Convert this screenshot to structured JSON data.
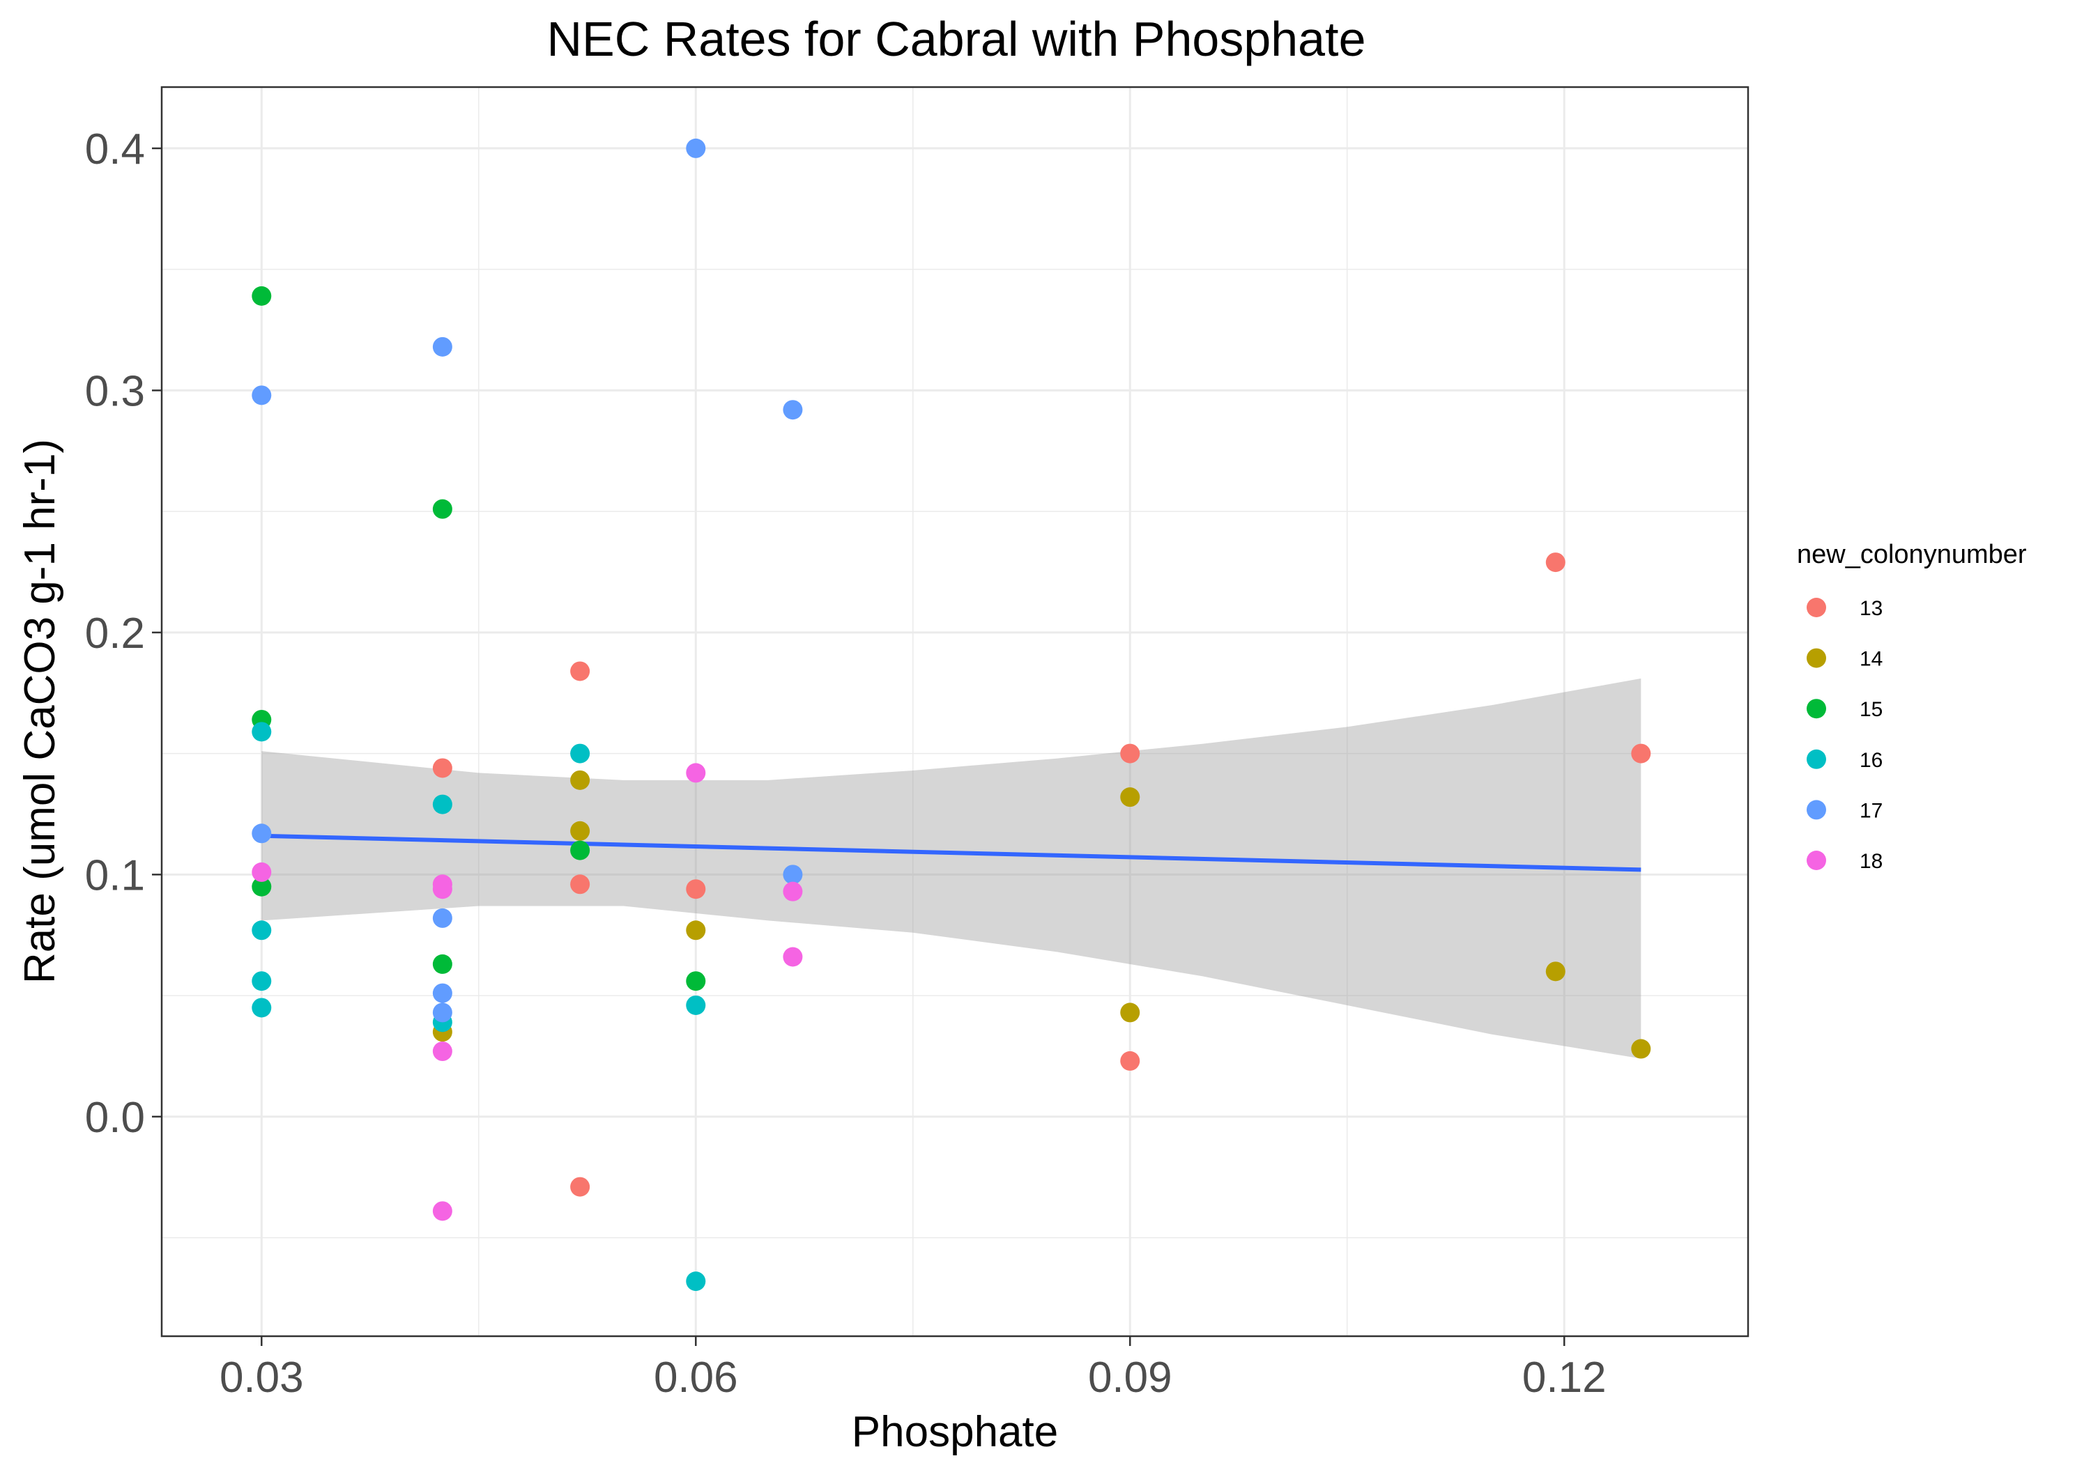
{
  "chart_data": {
    "type": "scatter",
    "title": "NEC Rates for Cabral with Phosphate",
    "xlabel": "Phosphate",
    "ylabel": "Rate (umol CaCO3 g-1 hr-1)",
    "xlim": [
      0.0231,
      0.1327
    ],
    "ylim": [
      -0.0907,
      0.4253
    ],
    "x_ticks": [
      {
        "value": 0.03,
        "label": "0.03"
      },
      {
        "value": 0.06,
        "label": "0.06"
      },
      {
        "value": 0.09,
        "label": "0.09"
      },
      {
        "value": 0.12,
        "label": "0.12"
      }
    ],
    "x_minor_ticks": [
      0.045,
      0.075,
      0.105
    ],
    "y_ticks": [
      {
        "value": 0.0,
        "label": "0.0"
      },
      {
        "value": 0.1,
        "label": "0.1"
      },
      {
        "value": 0.2,
        "label": "0.2"
      },
      {
        "value": 0.3,
        "label": "0.3"
      },
      {
        "value": 0.4,
        "label": "0.4"
      }
    ],
    "y_minor_ticks": [
      -0.05,
      0.05,
      0.15,
      0.25,
      0.35
    ],
    "grid": true,
    "legend": {
      "title": "new_colonynumber",
      "position": "right"
    },
    "series": [
      {
        "name": "13",
        "color": "#F8766D",
        "points": [
          {
            "x": 0.0425,
            "y": 0.144
          },
          {
            "x": 0.052,
            "y": 0.184
          },
          {
            "x": 0.052,
            "y": 0.096
          },
          {
            "x": 0.052,
            "y": -0.029
          },
          {
            "x": 0.06,
            "y": 0.094
          },
          {
            "x": 0.09,
            "y": 0.15
          },
          {
            "x": 0.09,
            "y": 0.023
          },
          {
            "x": 0.1194,
            "y": 0.229
          },
          {
            "x": 0.1253,
            "y": 0.15
          }
        ]
      },
      {
        "name": "14",
        "color": "#B79F00",
        "points": [
          {
            "x": 0.0425,
            "y": 0.035
          },
          {
            "x": 0.052,
            "y": 0.139
          },
          {
            "x": 0.052,
            "y": 0.118
          },
          {
            "x": 0.06,
            "y": 0.077
          },
          {
            "x": 0.09,
            "y": 0.132
          },
          {
            "x": 0.09,
            "y": 0.043
          },
          {
            "x": 0.1194,
            "y": 0.06
          },
          {
            "x": 0.1253,
            "y": 0.028
          }
        ]
      },
      {
        "name": "15",
        "color": "#00BA38",
        "points": [
          {
            "x": 0.03,
            "y": 0.339
          },
          {
            "x": 0.03,
            "y": 0.164
          },
          {
            "x": 0.03,
            "y": 0.095
          },
          {
            "x": 0.0425,
            "y": 0.251
          },
          {
            "x": 0.0425,
            "y": 0.063
          },
          {
            "x": 0.052,
            "y": 0.11
          },
          {
            "x": 0.06,
            "y": 0.056
          }
        ]
      },
      {
        "name": "16",
        "color": "#00BFC4",
        "points": [
          {
            "x": 0.03,
            "y": 0.159
          },
          {
            "x": 0.03,
            "y": 0.077
          },
          {
            "x": 0.03,
            "y": 0.056
          },
          {
            "x": 0.03,
            "y": 0.045
          },
          {
            "x": 0.0425,
            "y": 0.129
          },
          {
            "x": 0.0425,
            "y": 0.039
          },
          {
            "x": 0.052,
            "y": 0.15
          },
          {
            "x": 0.06,
            "y": 0.046
          },
          {
            "x": 0.06,
            "y": -0.068
          }
        ]
      },
      {
        "name": "17",
        "color": "#619CFF",
        "points": [
          {
            "x": 0.03,
            "y": 0.298
          },
          {
            "x": 0.03,
            "y": 0.117
          },
          {
            "x": 0.0425,
            "y": 0.318
          },
          {
            "x": 0.0425,
            "y": 0.082
          },
          {
            "x": 0.0425,
            "y": 0.051
          },
          {
            "x": 0.0425,
            "y": 0.043
          },
          {
            "x": 0.06,
            "y": 0.4
          },
          {
            "x": 0.0667,
            "y": 0.292
          },
          {
            "x": 0.0667,
            "y": 0.1
          }
        ]
      },
      {
        "name": "18",
        "color": "#F564E3",
        "points": [
          {
            "x": 0.03,
            "y": 0.101
          },
          {
            "x": 0.0425,
            "y": 0.096
          },
          {
            "x": 0.0425,
            "y": 0.094
          },
          {
            "x": 0.0425,
            "y": 0.027
          },
          {
            "x": 0.0425,
            "y": -0.039
          },
          {
            "x": 0.06,
            "y": 0.142
          },
          {
            "x": 0.0667,
            "y": 0.093
          },
          {
            "x": 0.0667,
            "y": 0.066
          }
        ]
      }
    ],
    "trend": {
      "method": "linear fit with confidence band",
      "color": "#3366FF",
      "band_color": "#999999",
      "fit": [
        {
          "x": 0.03,
          "y": 0.116
        },
        {
          "x": 0.1253,
          "y": 0.102
        }
      ],
      "band": [
        {
          "x": 0.03,
          "lo": 0.081,
          "hi": 0.151
        },
        {
          "x": 0.045,
          "lo": 0.087,
          "hi": 0.142
        },
        {
          "x": 0.055,
          "lo": 0.087,
          "hi": 0.139
        },
        {
          "x": 0.065,
          "lo": 0.081,
          "hi": 0.139
        },
        {
          "x": 0.075,
          "lo": 0.076,
          "hi": 0.143
        },
        {
          "x": 0.085,
          "lo": 0.068,
          "hi": 0.148
        },
        {
          "x": 0.095,
          "lo": 0.058,
          "hi": 0.154
        },
        {
          "x": 0.105,
          "lo": 0.046,
          "hi": 0.161
        },
        {
          "x": 0.115,
          "lo": 0.034,
          "hi": 0.17
        },
        {
          "x": 0.1253,
          "lo": 0.024,
          "hi": 0.181
        }
      ]
    }
  }
}
